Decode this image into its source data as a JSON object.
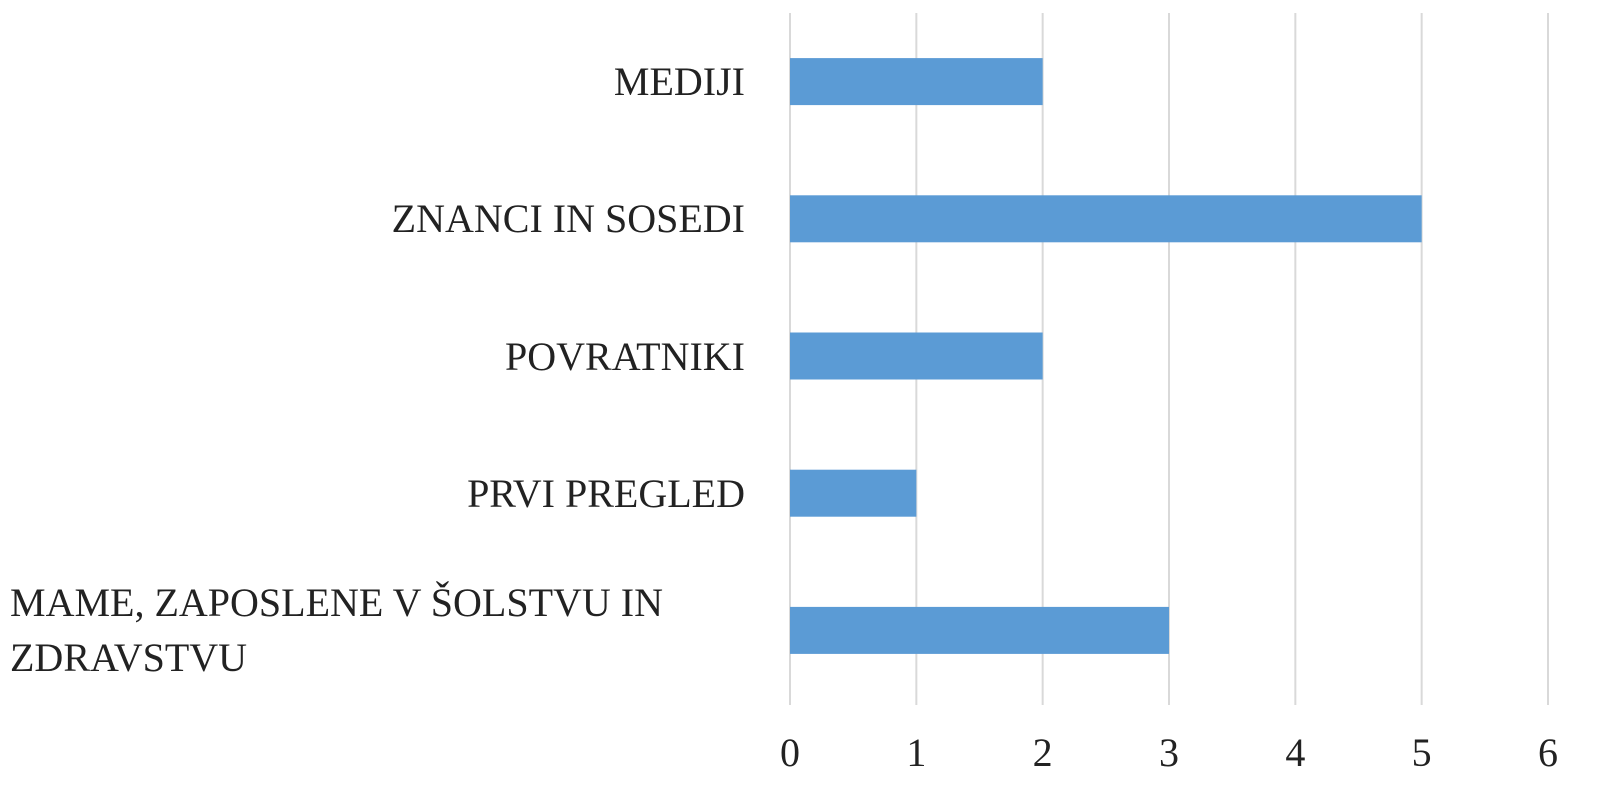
{
  "chart_data": {
    "type": "bar",
    "orientation": "horizontal",
    "categories": [
      "MEDIJI",
      "ZNANCI IN SOSEDI",
      "POVRATNIKI",
      "PRVI PREGLED",
      "MAME, ZAPOSLENE V ŠOLSTVU IN ZDRAVSTVU"
    ],
    "values": [
      2,
      5,
      2,
      1,
      3
    ],
    "color": "#5b9bd5",
    "xlim": [
      0,
      6
    ],
    "xticks": [
      0,
      1,
      2,
      3,
      4,
      5,
      6
    ],
    "grid": true
  }
}
